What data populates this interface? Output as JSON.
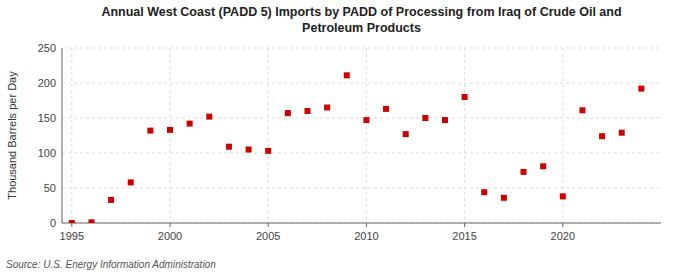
{
  "chart_data": {
    "type": "scatter",
    "title": "Annual West Coast (PADD 5) Imports by PADD of Processing from Iraq of Crude Oil and\nPetroleum Products",
    "ylabel": "Thousand Barrels per Day",
    "source": "Source: U.S. Energy Information Administration",
    "x": [
      1995,
      1996,
      1997,
      1998,
      1999,
      2000,
      2001,
      2002,
      2003,
      2004,
      2005,
      2006,
      2007,
      2008,
      2009,
      2010,
      2011,
      2012,
      2013,
      2014,
      2015,
      2016,
      2017,
      2018,
      2019,
      2020,
      2021,
      2022,
      2023,
      2024
    ],
    "values": [
      0,
      1,
      33,
      58,
      132,
      133,
      142,
      152,
      109,
      105,
      103,
      157,
      160,
      165,
      211,
      147,
      163,
      127,
      150,
      147,
      180,
      44,
      36,
      73,
      81,
      38,
      161,
      124,
      129,
      192
    ],
    "color": "#cc0000",
    "marker": "square",
    "xlim": [
      1994.5,
      2025
    ],
    "ylim": [
      0,
      250
    ],
    "xticks": [
      1995,
      2000,
      2005,
      2010,
      2015,
      2020
    ],
    "yticks": [
      0,
      50,
      100,
      150,
      200,
      250
    ],
    "grid": true
  }
}
